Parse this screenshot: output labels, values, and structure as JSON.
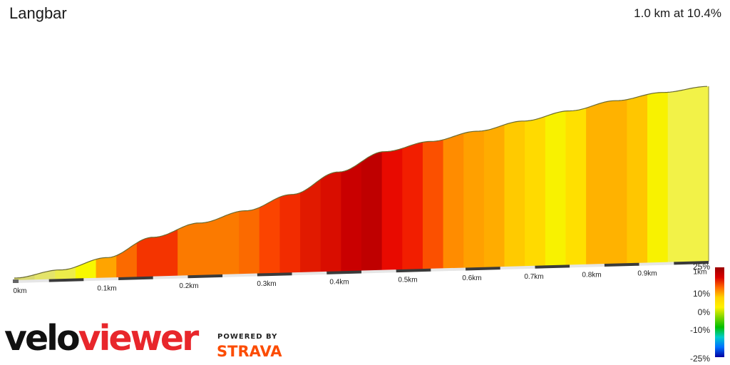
{
  "segment": {
    "name": "Langbar",
    "summary": "1.0 km at 10.4%"
  },
  "chart_data": {
    "type": "area",
    "title": "Langbar",
    "subtitle": "1.0 km at 10.4%",
    "x_ticks": [
      "0km",
      "0.1km",
      "0.2km",
      "0.3km",
      "0.4km",
      "0.5km",
      "0.6km",
      "0.7km",
      "0.8km",
      "0.9km",
      "1km"
    ],
    "xlim": [
      0,
      1.0
    ],
    "relative_elevation": [
      0,
      0.04,
      0.1,
      0.2,
      0.27,
      0.33,
      0.41,
      0.52,
      0.62,
      0.67,
      0.72,
      0.77,
      0.82,
      0.87,
      0.91,
      0.94
    ],
    "segment_colors": [
      "#d8d870",
      "#e4e46a",
      "#ecec4a",
      "#f8f800",
      "#ffa400",
      "#fb6a00",
      "#f43400",
      "#f43400",
      "#fb7a00",
      "#fb7a00",
      "#fb7a00",
      "#fb6a00",
      "#fb4400",
      "#f22c00",
      "#e11a00",
      "#d90d00",
      "#c90000",
      "#bf0000",
      "#e80a00",
      "#f21e00",
      "#fb5000",
      "#ff8c00",
      "#ffa000",
      "#ffac00",
      "#ffca00",
      "#ffda00",
      "#f8f200",
      "#ffe000",
      "#ffb200",
      "#ffb200",
      "#ffc600",
      "#f8f200",
      "#f2f248",
      "#f2f248"
    ],
    "legend": {
      "labels": [
        "25%",
        "10%",
        "0%",
        "-10%",
        "-25%"
      ],
      "gradient": [
        "#9a0000",
        "#d80000",
        "#ff6a00",
        "#ffd200",
        "#fff200",
        "#7dd600",
        "#00c000",
        "#00cccc",
        "#0070ff",
        "#0000a0"
      ]
    }
  },
  "branding": {
    "logo_part1": "velo",
    "logo_part2": "viewer",
    "powered_by": "POWERED BY",
    "strava": "STRAVA"
  }
}
